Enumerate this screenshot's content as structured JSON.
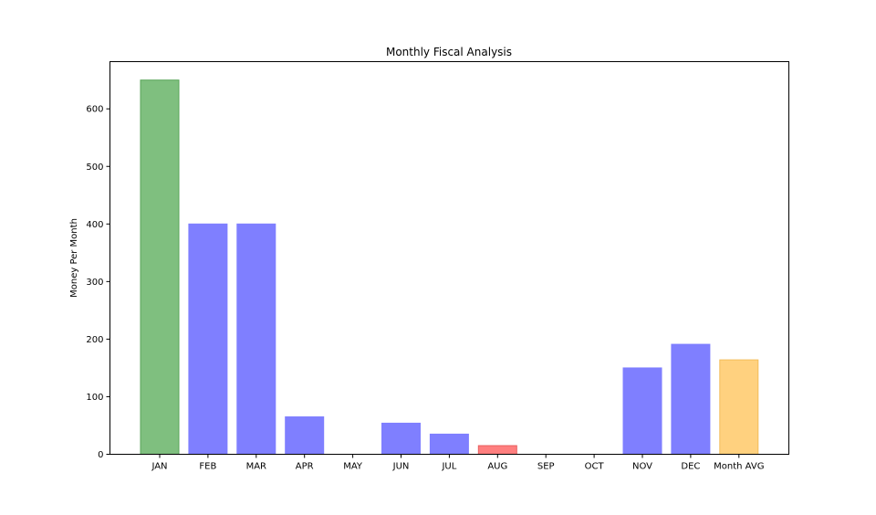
{
  "chart_data": {
    "type": "bar",
    "title": "Monthly Fiscal Analysis",
    "xlabel": "",
    "ylabel": "Money Per Month",
    "categories": [
      "JAN",
      "FEB",
      "MAR",
      "APR",
      "MAY",
      "JUN",
      "JUL",
      "AUG",
      "SEP",
      "OCT",
      "NOV",
      "DEC",
      "Month AVG"
    ],
    "values": [
      650,
      400,
      400,
      65,
      0,
      54,
      35,
      15,
      0,
      0,
      150,
      191,
      164
    ],
    "bar_colors": [
      "#7fbf7f",
      "#7f7fff",
      "#7f7fff",
      "#7f7fff",
      "#7f7fff",
      "#7f7fff",
      "#7f7fff",
      "#ff7f7f",
      "#7f7fff",
      "#7f7fff",
      "#7f7fff",
      "#7f7fff",
      "#ffd17f"
    ],
    "bar_edge_colors": [
      "#5aa65a",
      "#7f7fff",
      "#7f7fff",
      "#7f7fff",
      "#7f7fff",
      "#7f7fff",
      "#7f7fff",
      "#e86060",
      "#7f7fff",
      "#7f7fff",
      "#7f7fff",
      "#7f7fff",
      "#f2bd5a"
    ],
    "ylim": [
      0,
      682
    ],
    "yticks": [
      0,
      100,
      200,
      300,
      400,
      500,
      600
    ],
    "grid": false,
    "legend": "none"
  }
}
